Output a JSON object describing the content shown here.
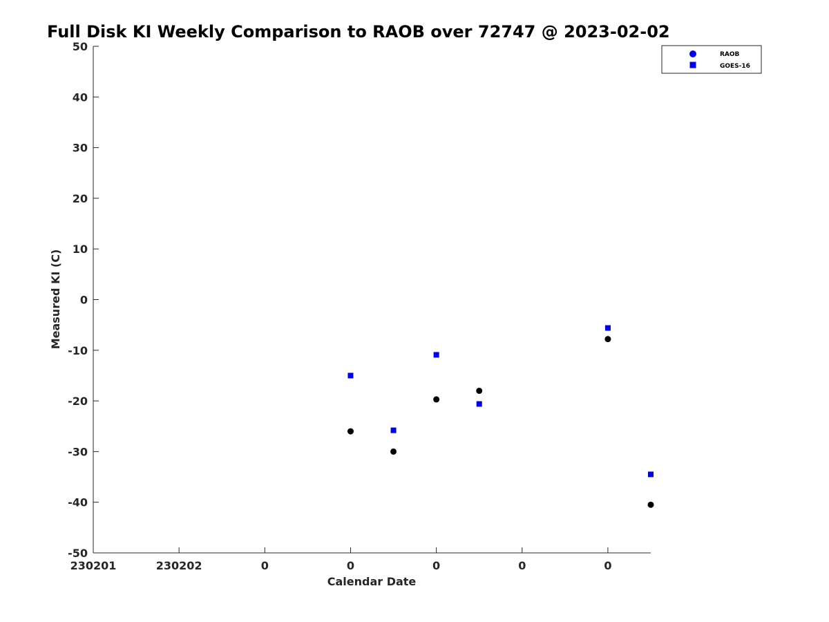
{
  "chart_data": {
    "type": "scatter",
    "title": "Full Disk KI Weekly Comparison to RAOB over 72747 @ 2023-02-02",
    "xlabel": "Calendar Date",
    "ylabel": "Measured KI (C)",
    "ylim": [
      -50,
      50
    ],
    "yticks": [
      50,
      40,
      30,
      20,
      10,
      0,
      -10,
      -20,
      -30,
      -40,
      -50
    ],
    "xlim": [
      0,
      6.5
    ],
    "xticks": [
      0,
      1,
      2,
      3,
      4,
      5,
      6
    ],
    "xtick_labels": [
      "230201",
      "230202",
      "0",
      "0",
      "0",
      "0",
      "0"
    ],
    "grid": false,
    "legend_position": "top-right",
    "series": [
      {
        "name": "RAOB",
        "marker": "circle",
        "color": "#000000",
        "x": [
          3.0,
          3.5,
          4.0,
          4.5,
          6.0,
          6.5
        ],
        "y": [
          -26.0,
          -30.0,
          -19.7,
          -18.0,
          -7.8,
          -40.5
        ]
      },
      {
        "name": "GOES-16",
        "marker": "square",
        "color": "#0000ee",
        "x": [
          3.0,
          3.5,
          4.0,
          4.5,
          6.0,
          6.5
        ],
        "y": [
          -15.0,
          -25.8,
          -10.9,
          -20.6,
          -5.6,
          -34.5
        ]
      }
    ]
  }
}
